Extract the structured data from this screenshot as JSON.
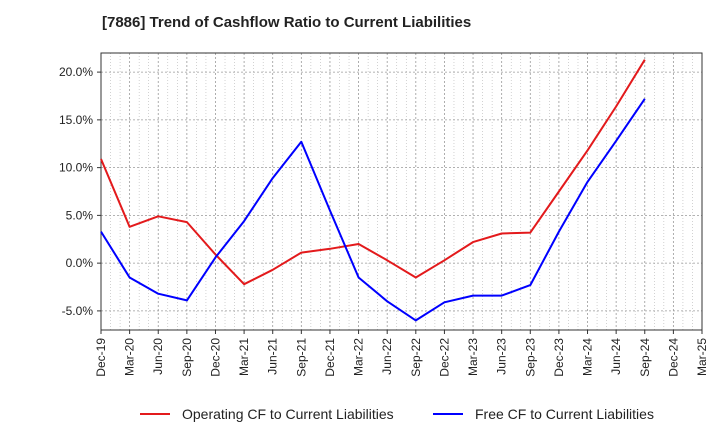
{
  "chart_data": {
    "type": "line",
    "title": "[7886]  Trend of Cashflow Ratio to Current Liabilities",
    "xlabel": "",
    "ylabel": "",
    "categories": [
      "Dec-19",
      "Mar-20",
      "Jun-20",
      "Sep-20",
      "Dec-20",
      "Mar-21",
      "Jun-21",
      "Sep-21",
      "Dec-21",
      "Mar-22",
      "Jun-22",
      "Sep-22",
      "Dec-22",
      "Mar-23",
      "Jun-23",
      "Sep-23",
      "Dec-23",
      "Mar-24",
      "Jun-24",
      "Sep-24",
      "Dec-24",
      "Mar-25"
    ],
    "y_ticks": [
      "20.0%",
      "15.0%",
      "10.0%",
      "5.0%",
      "0.0%",
      "-5.0%"
    ],
    "y_tick_values": [
      20,
      15,
      10,
      5,
      0,
      -5
    ],
    "ylim": [
      -7,
      22
    ],
    "grid": true,
    "legend_position": "bottom",
    "series": [
      {
        "name": "Operating CF to Current Liabilities",
        "color": "#e31a1c",
        "values": [
          10.9,
          3.8,
          4.9,
          4.3,
          0.9,
          -2.2,
          -0.7,
          1.1,
          1.5,
          2.0,
          0.3,
          -1.5,
          0.3,
          2.2,
          3.1,
          3.2,
          7.5,
          11.8,
          16.4,
          21.3,
          null,
          null
        ]
      },
      {
        "name": "Free CF to Current Liabilities",
        "color": "#0000ff",
        "values": [
          3.3,
          -1.5,
          -3.2,
          -3.9,
          0.6,
          4.4,
          8.9,
          12.7,
          5.5,
          -1.5,
          -4.0,
          -6.0,
          -4.1,
          -3.4,
          -3.4,
          -2.3,
          3.3,
          8.5,
          12.8,
          17.2,
          null,
          null
        ]
      }
    ]
  }
}
